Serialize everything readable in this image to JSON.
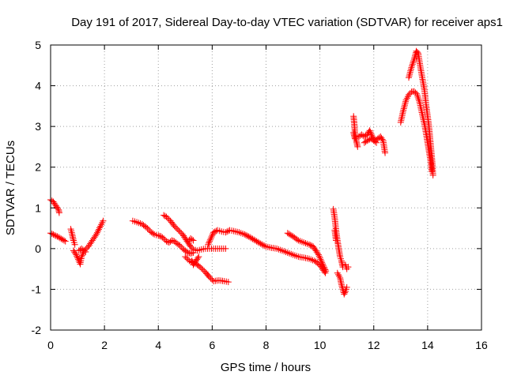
{
  "chart_data": {
    "type": "scatter",
    "title": "Day 191 of 2017, Sidereal Day-to-day VTEC variation (SDTVAR) for receiver aps1",
    "xlabel": "GPS time / hours",
    "ylabel": "SDTVAR / TECUs",
    "xlim": [
      0,
      16
    ],
    "ylim": [
      -2,
      5
    ],
    "xticks": [
      0,
      2,
      4,
      6,
      8,
      10,
      12,
      14,
      16
    ],
    "yticks": [
      -2,
      -1,
      0,
      1,
      2,
      3,
      4,
      5
    ],
    "xtick_labels": [
      "0",
      "2",
      "4",
      "6",
      "8",
      "10",
      "12",
      "14",
      "16"
    ],
    "ytick_labels": [
      "-2",
      "-1",
      "0",
      "1",
      "2",
      "3",
      "4",
      "5"
    ],
    "grid": true,
    "marker": "plus",
    "series": [
      {
        "color": "#ff0000",
        "segments": [
          [
            [
              0.0,
              1.2
            ],
            [
              0.1,
              1.15
            ],
            [
              0.2,
              1.05
            ],
            [
              0.3,
              0.95
            ],
            [
              0.32,
              0.88
            ]
          ],
          [
            [
              0.0,
              0.38
            ],
            [
              0.15,
              0.33
            ],
            [
              0.3,
              0.28
            ],
            [
              0.45,
              0.22
            ],
            [
              0.55,
              0.18
            ]
          ],
          [
            [
              0.75,
              0.48
            ],
            [
              0.8,
              0.35
            ],
            [
              0.85,
              0.2
            ],
            [
              0.9,
              0.1
            ]
          ],
          [
            [
              0.85,
              -0.05
            ],
            [
              0.95,
              -0.15
            ],
            [
              1.05,
              -0.3
            ],
            [
              1.1,
              -0.38
            ],
            [
              1.15,
              -0.2
            ],
            [
              1.25,
              -0.05
            ],
            [
              1.4,
              0.05
            ],
            [
              1.55,
              0.2
            ],
            [
              1.7,
              0.35
            ],
            [
              1.85,
              0.55
            ],
            [
              1.95,
              0.68
            ]
          ],
          [
            [
              1.05,
              -0.05
            ],
            [
              1.15,
              0.0
            ],
            [
              1.3,
              -0.08
            ]
          ],
          [
            [
              3.05,
              0.68
            ],
            [
              3.2,
              0.65
            ],
            [
              3.4,
              0.6
            ],
            [
              3.6,
              0.5
            ],
            [
              3.7,
              0.42
            ],
            [
              3.85,
              0.35
            ],
            [
              4.0,
              0.32
            ],
            [
              4.1,
              0.3
            ],
            [
              4.2,
              0.25
            ],
            [
              4.3,
              0.18
            ],
            [
              4.4,
              0.15
            ],
            [
              4.5,
              0.2
            ],
            [
              4.6,
              0.18
            ],
            [
              4.7,
              0.12
            ],
            [
              4.8,
              0.08
            ],
            [
              4.9,
              0.0
            ],
            [
              5.0,
              -0.05
            ],
            [
              5.1,
              -0.1
            ],
            [
              5.2,
              -0.12
            ],
            [
              5.3,
              -0.1
            ]
          ],
          [
            [
              4.2,
              0.82
            ],
            [
              4.3,
              0.78
            ],
            [
              4.45,
              0.68
            ],
            [
              4.6,
              0.55
            ],
            [
              4.75,
              0.45
            ],
            [
              4.9,
              0.35
            ],
            [
              5.0,
              0.25
            ],
            [
              5.1,
              0.15
            ],
            [
              5.2,
              0.05
            ],
            [
              5.3,
              -0.02
            ],
            [
              5.45,
              -0.05
            ],
            [
              5.6,
              -0.02
            ],
            [
              5.75,
              0.0
            ],
            [
              5.9,
              0.0
            ],
            [
              6.05,
              0.0
            ],
            [
              6.2,
              0.0
            ],
            [
              6.35,
              0.0
            ],
            [
              6.5,
              0.0
            ]
          ],
          [
            [
              5.25,
              -0.3
            ],
            [
              5.3,
              -0.4
            ],
            [
              5.4,
              -0.3
            ],
            [
              5.5,
              -0.2
            ]
          ],
          [
            [
              5.1,
              0.18
            ],
            [
              5.2,
              0.25
            ],
            [
              5.3,
              0.2
            ]
          ],
          [
            [
              5.0,
              -0.2
            ],
            [
              5.15,
              -0.3
            ],
            [
              5.35,
              -0.35
            ],
            [
              5.55,
              -0.45
            ],
            [
              5.75,
              -0.58
            ],
            [
              5.9,
              -0.7
            ],
            [
              6.05,
              -0.8
            ],
            [
              6.25,
              -0.78
            ],
            [
              6.45,
              -0.8
            ],
            [
              6.6,
              -0.82
            ]
          ],
          [
            [
              5.85,
              0.1
            ],
            [
              5.95,
              0.25
            ],
            [
              6.05,
              0.4
            ],
            [
              6.2,
              0.45
            ],
            [
              6.35,
              0.42
            ],
            [
              6.5,
              0.4
            ],
            [
              6.65,
              0.45
            ],
            [
              6.8,
              0.43
            ],
            [
              7.0,
              0.4
            ],
            [
              7.2,
              0.35
            ],
            [
              7.4,
              0.28
            ],
            [
              7.6,
              0.2
            ],
            [
              7.8,
              0.12
            ],
            [
              8.0,
              0.05
            ],
            [
              8.2,
              0.02
            ],
            [
              8.4,
              0.0
            ],
            [
              8.6,
              -0.05
            ],
            [
              8.8,
              -0.1
            ],
            [
              9.0,
              -0.15
            ],
            [
              9.2,
              -0.2
            ],
            [
              9.4,
              -0.22
            ],
            [
              9.6,
              -0.25
            ],
            [
              9.8,
              -0.3
            ],
            [
              10.0,
              -0.4
            ],
            [
              10.1,
              -0.5
            ],
            [
              10.2,
              -0.6
            ]
          ],
          [
            [
              8.8,
              0.38
            ],
            [
              9.0,
              0.3
            ],
            [
              9.2,
              0.2
            ],
            [
              9.4,
              0.15
            ],
            [
              9.6,
              0.1
            ],
            [
              9.75,
              0.05
            ],
            [
              9.85,
              -0.05
            ],
            [
              9.95,
              -0.15
            ],
            [
              10.05,
              -0.3
            ],
            [
              10.15,
              -0.45
            ],
            [
              10.22,
              -0.55
            ]
          ],
          [
            [
              10.5,
              0.97
            ],
            [
              10.55,
              0.75
            ],
            [
              10.6,
              0.45
            ],
            [
              10.65,
              0.2
            ],
            [
              10.7,
              0.0
            ],
            [
              10.75,
              -0.2
            ],
            [
              10.8,
              -0.3
            ],
            [
              10.85,
              -0.45
            ]
          ],
          [
            [
              10.55,
              0.45
            ],
            [
              10.6,
              0.2
            ]
          ],
          [
            [
              10.65,
              -0.6
            ],
            [
              10.75,
              -0.72
            ],
            [
              10.8,
              -0.88
            ],
            [
              10.85,
              -1.0
            ],
            [
              10.9,
              -1.12
            ],
            [
              10.95,
              -1.05
            ],
            [
              11.0,
              -0.95
            ]
          ],
          [
            [
              10.95,
              -0.4
            ],
            [
              11.0,
              -0.5
            ],
            [
              11.05,
              -0.45
            ]
          ],
          [
            [
              11.25,
              3.25
            ],
            [
              11.28,
              3.05
            ],
            [
              11.3,
              2.85
            ],
            [
              11.35,
              2.65
            ],
            [
              11.4,
              2.5
            ]
          ],
          [
            [
              11.25,
              2.85
            ],
            [
              11.3,
              2.7
            ]
          ],
          [
            [
              11.45,
              2.75
            ],
            [
              11.55,
              2.8
            ],
            [
              11.65,
              2.75
            ],
            [
              11.75,
              2.8
            ],
            [
              11.85,
              2.9
            ],
            [
              11.95,
              2.75
            ],
            [
              12.05,
              2.65
            ],
            [
              12.15,
              2.7
            ],
            [
              12.25,
              2.75
            ],
            [
              12.35,
              2.65
            ],
            [
              12.42,
              2.35
            ]
          ],
          [
            [
              11.65,
              2.6
            ],
            [
              11.75,
              2.65
            ],
            [
              11.9,
              2.7
            ],
            [
              12.1,
              2.6
            ]
          ],
          [
            [
              13.0,
              3.1
            ],
            [
              13.1,
              3.4
            ],
            [
              13.2,
              3.65
            ],
            [
              13.3,
              3.78
            ],
            [
              13.4,
              3.85
            ],
            [
              13.5,
              3.86
            ],
            [
              13.6,
              3.8
            ],
            [
              13.7,
              3.6
            ],
            [
              13.8,
              3.3
            ],
            [
              13.9,
              3.0
            ],
            [
              14.0,
              2.6
            ],
            [
              14.1,
              2.2
            ],
            [
              14.15,
              1.9
            ]
          ],
          [
            [
              13.3,
              4.2
            ],
            [
              13.4,
              4.45
            ],
            [
              13.5,
              4.65
            ],
            [
              13.58,
              4.85
            ],
            [
              13.65,
              4.8
            ],
            [
              13.72,
              4.5
            ],
            [
              13.8,
              4.2
            ],
            [
              13.88,
              3.9
            ],
            [
              13.95,
              3.5
            ],
            [
              14.05,
              3.0
            ],
            [
              14.12,
              2.5
            ],
            [
              14.18,
              2.05
            ],
            [
              14.2,
              1.8
            ]
          ]
        ]
      }
    ]
  }
}
